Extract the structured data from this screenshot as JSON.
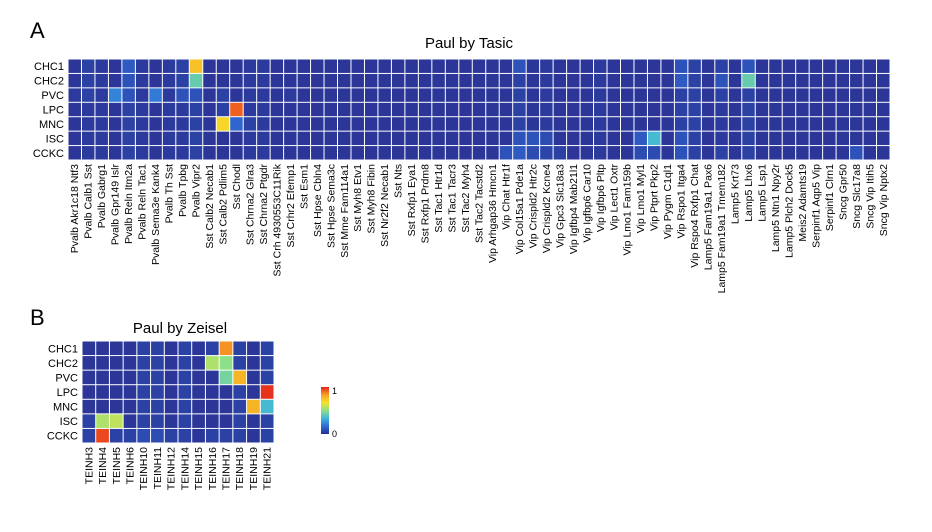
{
  "colors": {
    "background": "#ffffff",
    "grid_line": "#ffffff",
    "colormap": [
      "#2a2f8f",
      "#2f6bd6",
      "#3fb5d8",
      "#8ee088",
      "#f4e32a",
      "#f7a025",
      "#e5231c"
    ]
  },
  "chart_data": [
    {
      "type": "heatmap",
      "panel_label": "A",
      "title": "Paul by Tasic",
      "rows": [
        "CHC1",
        "CHC2",
        "PVC",
        "LPC",
        "MNC",
        "ISC",
        "CCKC"
      ],
      "columns": [
        "Pvalb Akr1c18 Ntf3",
        "Pvalb Calb1 Sst",
        "Pvalb Gabrg1",
        "Pvalb Gpr149 Islr",
        "Pvalb Reln Itm2a",
        "Pvalb Reln Tac1",
        "Pvalb Sema3e Kank4",
        "Pvalb Th Sst",
        "Pvalb Tpbg",
        "Pvalb Vipr2",
        "Sst Calb2 Necab1",
        "Sst Calb2 Pdlim5",
        "Sst Chodl",
        "Sst Chrna2 Glra3",
        "Sst Chrna2 Ptgdr",
        "Sst Crh 4930553C11Rik",
        "Sst Crhr2 Efemp1",
        "Sst Esm1",
        "Sst Hpse Cbln4",
        "Sst Hpse Sema3c",
        "Sst Mme Fam114a1",
        "Sst Myh8 Etv1",
        "Sst Myh8 Fibin",
        "Sst Nr2f2 Necab1",
        "Sst Nts",
        "Sst Rxfp1 Eya1",
        "Sst Rxfp1 Prdm8",
        "Sst Tac1 Htr1d",
        "Sst Tac1 Tacr3",
        "Sst Tac2 Myh4",
        "Sst Tac2 Tacstd2",
        "Vip Arhgap36 Hmcn1",
        "Vip Chat Htr1f",
        "Vip Col15a1 Pde1a",
        "Vip Crispld2 Htr2c",
        "Vip Crispld2 Kcne4",
        "Vip Gpc3 Slc18a3",
        "Vip Igfbp4 Mab21l1",
        "Vip Igfbp6 Car10",
        "Vip Igfbp6 Pltp",
        "Vip Lect1 Oxtr",
        "Vip Lmo1 Fam159b",
        "Vip Lmo1 Myl1",
        "Vip Ptprt Pkp2",
        "Vip Pygm C1ql1",
        "Vip Rspo1 Itga4",
        "Vip Rspo4 Rxfp1 Chat",
        "Lamp5 Fam19a1 Pax6",
        "Lamp5 Fam19a1 Tmem182",
        "Lamp5 Krt73",
        "Lamp5 Lhx6",
        "Lamp5 Lsp1",
        "Lamp5 Ntn1 Npy2r",
        "Lamp5 Plch2 Dock5",
        "Meis2 Adamts19",
        "Serpinf1 Aqp5 Vip",
        "Serpinf1 Clrn1",
        "Sncg Gpr50",
        "Sncg Slc17a8",
        "Sncg Vip Itih5",
        "Sncg Vip Nptx2"
      ],
      "values": [
        [
          0.02,
          0.05,
          0.03,
          0.02,
          0.12,
          0.03,
          0.02,
          0.03,
          0.05,
          0.75,
          0.02,
          0.02,
          0.02,
          0.03,
          0.03,
          0.02,
          0.02,
          0.02,
          0.02,
          0.02,
          0.02,
          0.02,
          0.02,
          0.02,
          0.02,
          0.02,
          0.02,
          0.02,
          0.02,
          0.02,
          0.02,
          0.02,
          0.02,
          0.1,
          0.02,
          0.03,
          0.02,
          0.02,
          0.02,
          0.03,
          0.02,
          0.02,
          0.02,
          0.02,
          0.02,
          0.1,
          0.05,
          0.02,
          0.05,
          0.02,
          0.1,
          0.02,
          0.02,
          0.02,
          0.02,
          0.02,
          0.02,
          0.02,
          0.02,
          0.02,
          0.02
        ],
        [
          0.02,
          0.05,
          0.03,
          0.02,
          0.1,
          0.03,
          0.02,
          0.03,
          0.05,
          0.42,
          0.02,
          0.02,
          0.02,
          0.03,
          0.03,
          0.02,
          0.02,
          0.02,
          0.02,
          0.02,
          0.02,
          0.02,
          0.02,
          0.02,
          0.02,
          0.02,
          0.02,
          0.02,
          0.02,
          0.02,
          0.02,
          0.02,
          0.02,
          0.05,
          0.02,
          0.03,
          0.02,
          0.02,
          0.02,
          0.03,
          0.02,
          0.02,
          0.02,
          0.02,
          0.02,
          0.12,
          0.05,
          0.02,
          0.1,
          0.02,
          0.42,
          0.02,
          0.02,
          0.02,
          0.02,
          0.02,
          0.02,
          0.02,
          0.02,
          0.02,
          0.02
        ],
        [
          0.03,
          0.05,
          0.03,
          0.22,
          0.1,
          0.03,
          0.2,
          0.03,
          0.1,
          0.1,
          0.02,
          0.05,
          0.02,
          0.03,
          0.03,
          0.02,
          0.03,
          0.02,
          0.02,
          0.02,
          0.02,
          0.02,
          0.02,
          0.02,
          0.02,
          0.02,
          0.02,
          0.02,
          0.02,
          0.02,
          0.02,
          0.02,
          0.02,
          0.05,
          0.02,
          0.03,
          0.02,
          0.02,
          0.02,
          0.03,
          0.02,
          0.02,
          0.02,
          0.02,
          0.02,
          0.05,
          0.05,
          0.02,
          0.05,
          0.02,
          0.05,
          0.02,
          0.02,
          0.02,
          0.02,
          0.02,
          0.02,
          0.02,
          0.02,
          0.02,
          0.02
        ],
        [
          0.02,
          0.03,
          0.03,
          0.02,
          0.05,
          0.03,
          0.02,
          0.03,
          0.03,
          0.05,
          0.02,
          0.05,
          0.92,
          0.03,
          0.03,
          0.02,
          0.02,
          0.02,
          0.02,
          0.02,
          0.02,
          0.02,
          0.02,
          0.02,
          0.02,
          0.02,
          0.02,
          0.02,
          0.02,
          0.02,
          0.02,
          0.02,
          0.02,
          0.05,
          0.02,
          0.03,
          0.02,
          0.02,
          0.02,
          0.03,
          0.02,
          0.02,
          0.02,
          0.02,
          0.02,
          0.05,
          0.05,
          0.02,
          0.03,
          0.02,
          0.05,
          0.02,
          0.02,
          0.02,
          0.02,
          0.02,
          0.02,
          0.02,
          0.02,
          0.02,
          0.02
        ],
        [
          0.02,
          0.03,
          0.03,
          0.02,
          0.05,
          0.03,
          0.02,
          0.03,
          0.03,
          0.05,
          0.02,
          0.7,
          0.15,
          0.05,
          0.03,
          0.02,
          0.02,
          0.02,
          0.02,
          0.02,
          0.02,
          0.02,
          0.02,
          0.02,
          0.02,
          0.02,
          0.02,
          0.02,
          0.02,
          0.02,
          0.02,
          0.02,
          0.02,
          0.05,
          0.02,
          0.03,
          0.02,
          0.02,
          0.02,
          0.03,
          0.02,
          0.02,
          0.02,
          0.02,
          0.02,
          0.05,
          0.05,
          0.02,
          0.03,
          0.02,
          0.05,
          0.02,
          0.02,
          0.02,
          0.02,
          0.02,
          0.02,
          0.02,
          0.02,
          0.02,
          0.02
        ],
        [
          0.02,
          0.03,
          0.03,
          0.02,
          0.05,
          0.03,
          0.02,
          0.03,
          0.03,
          0.05,
          0.02,
          0.02,
          0.02,
          0.03,
          0.03,
          0.02,
          0.02,
          0.02,
          0.02,
          0.02,
          0.02,
          0.02,
          0.02,
          0.02,
          0.02,
          0.02,
          0.02,
          0.02,
          0.02,
          0.02,
          0.02,
          0.02,
          0.02,
          0.1,
          0.1,
          0.08,
          0.02,
          0.02,
          0.02,
          0.03,
          0.02,
          0.02,
          0.12,
          0.35,
          0.02,
          0.1,
          0.05,
          0.02,
          0.03,
          0.02,
          0.05,
          0.02,
          0.02,
          0.02,
          0.02,
          0.02,
          0.02,
          0.02,
          0.02,
          0.02,
          0.02
        ],
        [
          0.02,
          0.03,
          0.03,
          0.02,
          0.05,
          0.03,
          0.02,
          0.03,
          0.03,
          0.05,
          0.02,
          0.02,
          0.02,
          0.03,
          0.03,
          0.02,
          0.02,
          0.02,
          0.02,
          0.02,
          0.02,
          0.02,
          0.02,
          0.02,
          0.02,
          0.02,
          0.02,
          0.02,
          0.02,
          0.02,
          0.02,
          0.02,
          0.1,
          0.12,
          0.08,
          0.06,
          0.05,
          0.02,
          0.02,
          0.03,
          0.02,
          0.02,
          0.08,
          0.08,
          0.02,
          0.1,
          0.05,
          0.02,
          0.05,
          0.02,
          0.05,
          0.02,
          0.02,
          0.02,
          0.02,
          0.02,
          0.02,
          0.02,
          0.1,
          0.02,
          0.02
        ]
      ]
    },
    {
      "type": "heatmap",
      "panel_label": "B",
      "title": "Paul by Zeisel",
      "rows": [
        "CHC1",
        "CHC2",
        "PVC",
        "LPC",
        "MNC",
        "ISC",
        "CCKC"
      ],
      "columns": [
        "TEINH3",
        "TEINH4",
        "TEINH5",
        "TEINH6",
        "TEINH10",
        "TEINH11",
        "TEINH12",
        "TEINH14",
        "TEINH15",
        "TEINH16",
        "TEINH17",
        "TEINH18",
        "TEINH19",
        "TEINH21"
      ],
      "values": [
        [
          0.02,
          0.02,
          0.02,
          0.02,
          0.05,
          0.05,
          0.02,
          0.05,
          0.02,
          0.05,
          0.85,
          0.05,
          0.02,
          0.05
        ],
        [
          0.02,
          0.02,
          0.02,
          0.02,
          0.05,
          0.05,
          0.02,
          0.05,
          0.02,
          0.55,
          0.5,
          0.05,
          0.02,
          0.05
        ],
        [
          0.02,
          0.02,
          0.02,
          0.02,
          0.05,
          0.05,
          0.02,
          0.05,
          0.02,
          0.02,
          0.45,
          0.78,
          0.02,
          0.05
        ],
        [
          0.02,
          0.02,
          0.02,
          0.02,
          0.05,
          0.05,
          0.02,
          0.05,
          0.02,
          0.02,
          0.02,
          0.05,
          0.02,
          0.98
        ],
        [
          0.02,
          0.02,
          0.02,
          0.02,
          0.05,
          0.05,
          0.02,
          0.05,
          0.02,
          0.02,
          0.02,
          0.05,
          0.78,
          0.35
        ],
        [
          0.05,
          0.55,
          0.58,
          0.02,
          0.05,
          0.05,
          0.02,
          0.05,
          0.02,
          0.02,
          0.02,
          0.05,
          0.02,
          0.05
        ],
        [
          0.05,
          0.95,
          0.05,
          0.05,
          0.08,
          0.08,
          0.05,
          0.05,
          0.02,
          0.05,
          0.05,
          0.05,
          0.02,
          0.05
        ]
      ]
    }
  ],
  "colorbar": {
    "max_label": "1",
    "min_label": "0",
    "range": [
      0,
      1
    ]
  }
}
